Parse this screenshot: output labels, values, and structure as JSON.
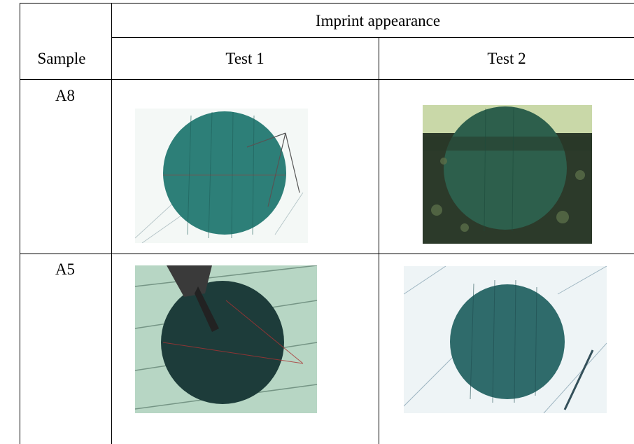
{
  "table": {
    "header": {
      "title": "Imprint appearance",
      "columns": [
        "Sample",
        "Test 1",
        "Test 2"
      ]
    },
    "rows": [
      [
        "A8"
      ],
      [
        "A5"
      ]
    ]
  }
}
